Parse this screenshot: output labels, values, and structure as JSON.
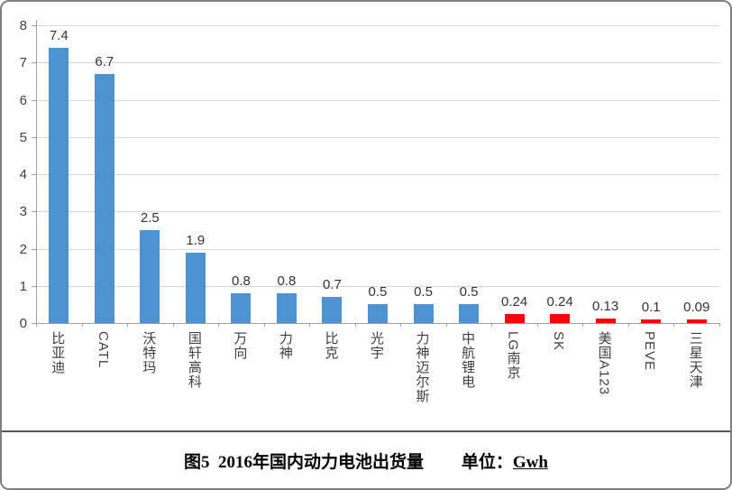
{
  "title": {
    "prefix": "图5  2016年国内动力电池出货量",
    "unit_label": "单位：",
    "unit_value": "Gwh"
  },
  "chart_data": {
    "type": "bar",
    "title": "图5 2016年国内动力电池出货量",
    "unit": "Gwh",
    "categories": [
      "比亚迪",
      "CATL",
      "沃特玛",
      "国轩高科",
      "万向",
      "力神",
      "比克",
      "光宇",
      "力神迈尔斯",
      "中航锂电",
      "LG南京",
      "SK",
      "美国A123",
      "PEVE",
      "三星天津"
    ],
    "values": [
      7.4,
      6.7,
      2.5,
      1.9,
      0.8,
      0.8,
      0.7,
      0.5,
      0.5,
      0.5,
      0.24,
      0.24,
      0.13,
      0.1,
      0.09
    ],
    "value_labels": [
      "7.4",
      "6.7",
      "2.5",
      "1.9",
      "0.8",
      "0.8",
      "0.7",
      "0.5",
      "0.5",
      "0.5",
      "0.24",
      "0.24",
      "0.13",
      "0.1",
      "0.09"
    ],
    "bar_colors": [
      "#4e93d1",
      "#4e93d1",
      "#4e93d1",
      "#4e93d1",
      "#4e93d1",
      "#4e93d1",
      "#4e93d1",
      "#4e93d1",
      "#4e93d1",
      "#4e93d1",
      "#fe0000",
      "#fe0000",
      "#fe0000",
      "#fe0000",
      "#fe0000"
    ],
    "ylim": [
      0,
      8
    ],
    "yticks": [
      0,
      1,
      2,
      3,
      4,
      5,
      6,
      7,
      8
    ],
    "xlabel": "",
    "ylabel": "",
    "grid": true,
    "legend": "none",
    "colors": {
      "domestic_bar": "#4e93d1",
      "foreign_bar": "#fe0000",
      "gridline": "#d6d6d6",
      "axis": "#a0a0a0",
      "label_text": "#3f3f3f"
    }
  }
}
